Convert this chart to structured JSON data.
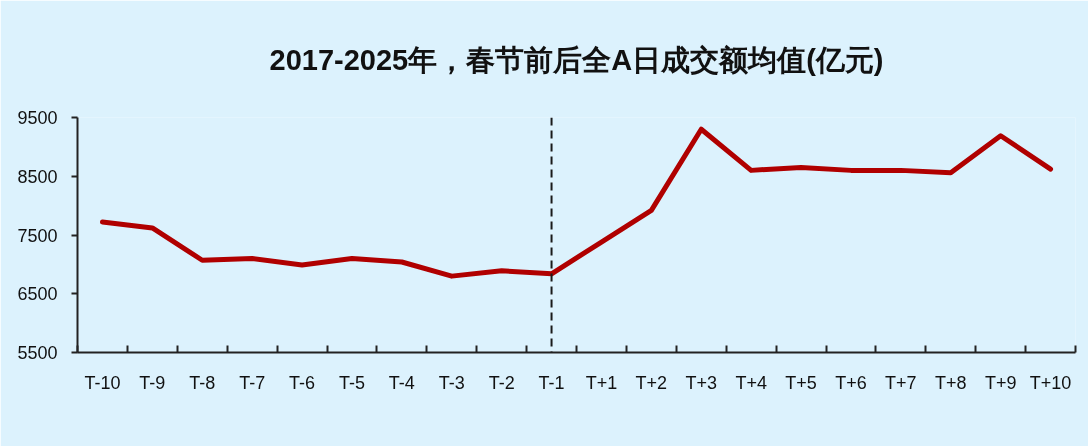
{
  "chart_data": {
    "type": "line",
    "title": "2017-2025年，春节前后全A日成交额均值(亿元)",
    "categories": [
      "T-10",
      "T-9",
      "T-8",
      "T-7",
      "T-6",
      "T-5",
      "T-4",
      "T-3",
      "T-2",
      "T-1",
      "T+1",
      "T+2",
      "T+3",
      "T+4",
      "T+5",
      "T+6",
      "T+7",
      "T+8",
      "T+9",
      "T+10"
    ],
    "series": [
      {
        "color": "#b00000",
        "values": [
          7720,
          7620,
          7070,
          7100,
          6990,
          7100,
          7040,
          6800,
          6890,
          6840,
          7380,
          7920,
          9300,
          8600,
          8650,
          8600,
          8600,
          8560,
          9190,
          8620
        ]
      }
    ],
    "ylim": [
      5500,
      9500
    ],
    "yticks": [
      5500,
      6500,
      7500,
      8500,
      9500
    ],
    "line_style": "solid",
    "ref_lines": [
      {
        "axis": "x",
        "value": "T-1",
        "color": "#1a1a1a",
        "line_style": "dashed"
      }
    ]
  }
}
